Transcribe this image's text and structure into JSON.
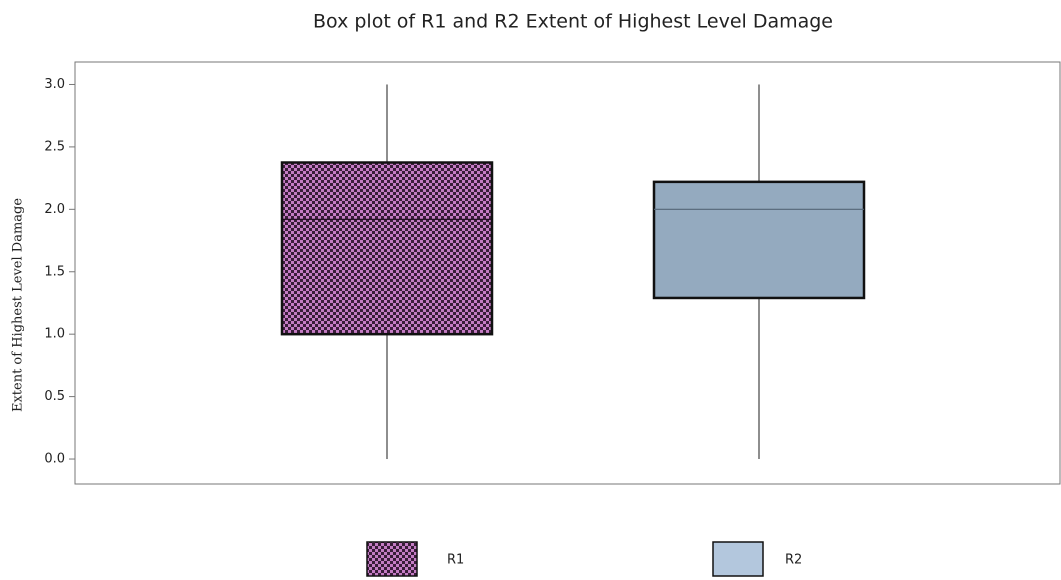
{
  "chart_data": {
    "type": "box",
    "title": "Box plot of R1 and R2 Extent of Highest Level Damage",
    "y_label": "Extent of Highest Level Damage",
    "series": [
      {
        "name": "R1",
        "color": "#c47cc4",
        "min": 0,
        "q1": 1.0,
        "median": 1.92,
        "q3": 2.375,
        "max": 3.0
      },
      {
        "name": "R2",
        "color": "#94aabf",
        "min": 0,
        "q1": 1.29,
        "median": 2.0,
        "q3": 2.22,
        "max": 3.0
      }
    ],
    "ylim": [
      -0.2,
      3.18
    ],
    "yticks": [
      {
        "value": 0,
        "label": "0.0"
      },
      0.5,
      {
        "value": 1,
        "label": "1.0"
      },
      1.5,
      {
        "value": 2,
        "label": "2.0"
      },
      2.5,
      {
        "value": 3,
        "label": "3.0"
      }
    ]
  }
}
